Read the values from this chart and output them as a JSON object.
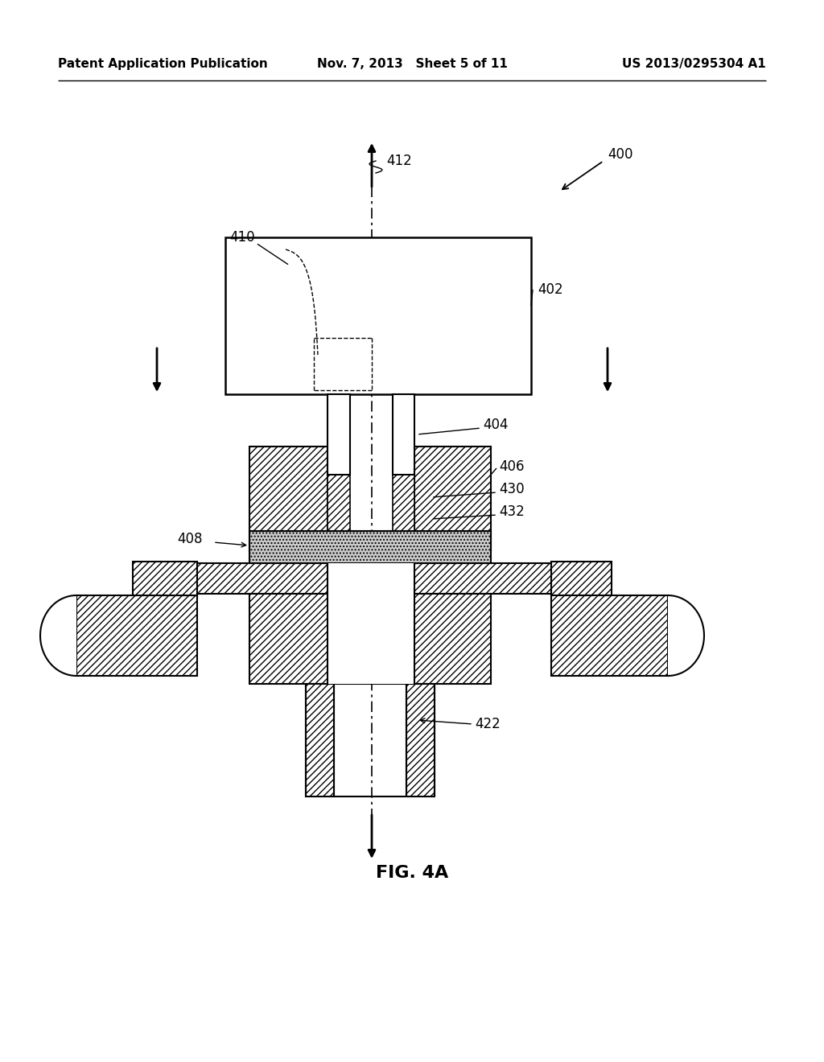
{
  "header_left": "Patent Application Publication",
  "header_mid": "Nov. 7, 2013   Sheet 5 of 11",
  "header_right": "US 2013/0295304 A1",
  "fig_label": "FIG. 4A",
  "bg_color": "#ffffff"
}
